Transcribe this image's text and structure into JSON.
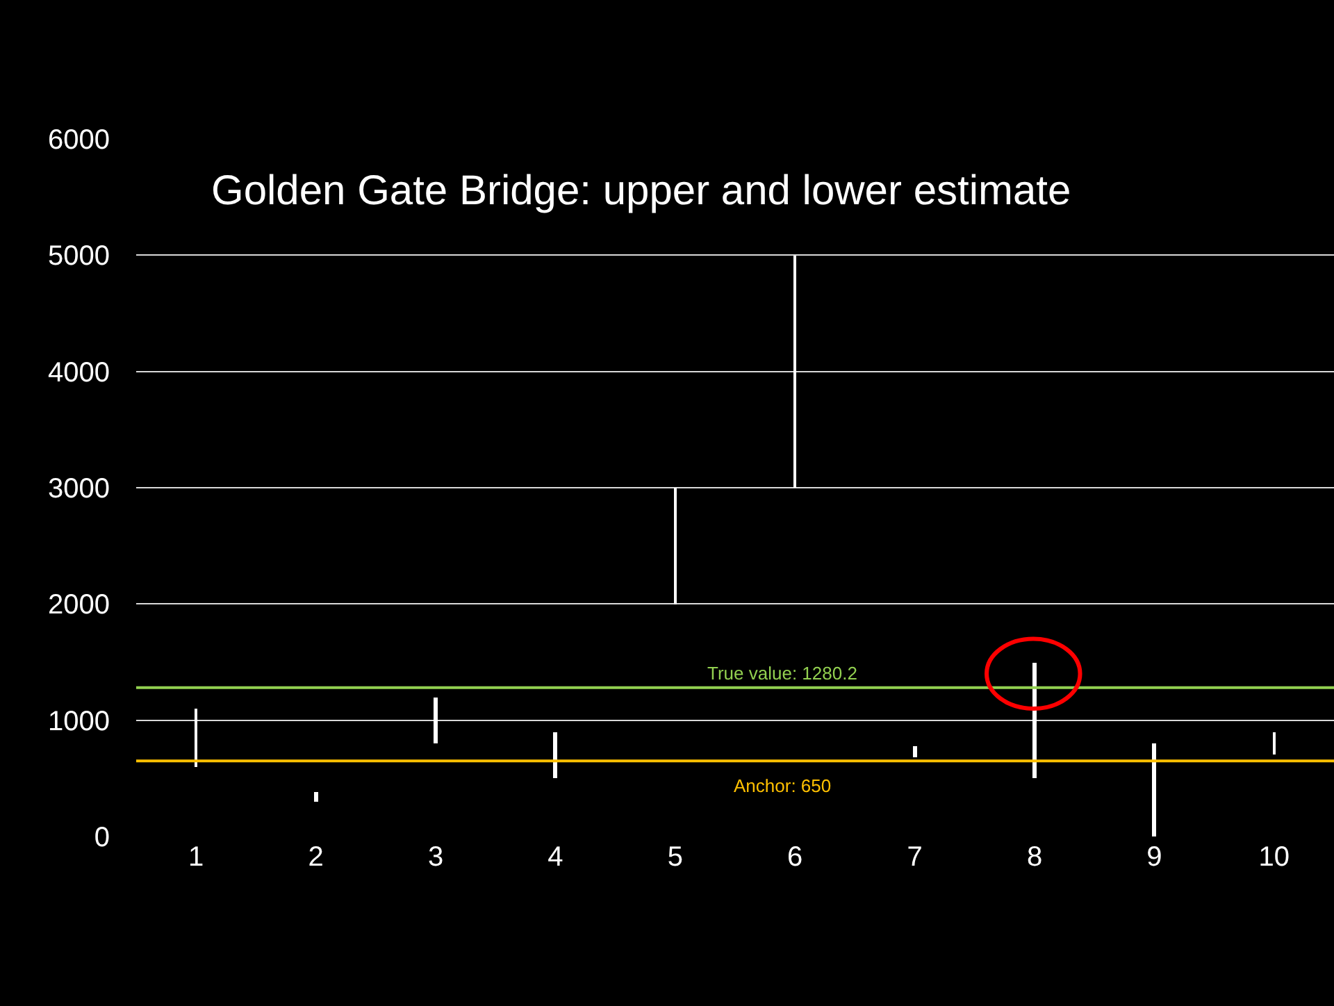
{
  "chart_data": {
    "type": "bar",
    "title": "Golden Gate Bridge: upper and lower estimate",
    "categories": [
      "1",
      "2",
      "3",
      "4",
      "5",
      "6",
      "7",
      "8",
      "9",
      "10"
    ],
    "base": [
      600,
      300,
      800,
      500,
      2000,
      3000,
      680,
      500,
      0,
      700
    ],
    "values": [
      500,
      80,
      400,
      400,
      1000,
      2000,
      100,
      1000,
      800,
      200
    ],
    "color": "#ffffff",
    "ylim": [
      0,
      6000
    ],
    "yticks": [
      0,
      1000,
      2000,
      3000,
      4000,
      5000,
      6000
    ],
    "grid": "y",
    "ref_lines": [
      {
        "axis": "y",
        "value": 1280.2,
        "label": "True value: 1280.2",
        "color": "#92d050"
      },
      {
        "axis": "y",
        "value": 650,
        "label": "Anchor: 650",
        "color": "#ffc000"
      }
    ]
  }
}
